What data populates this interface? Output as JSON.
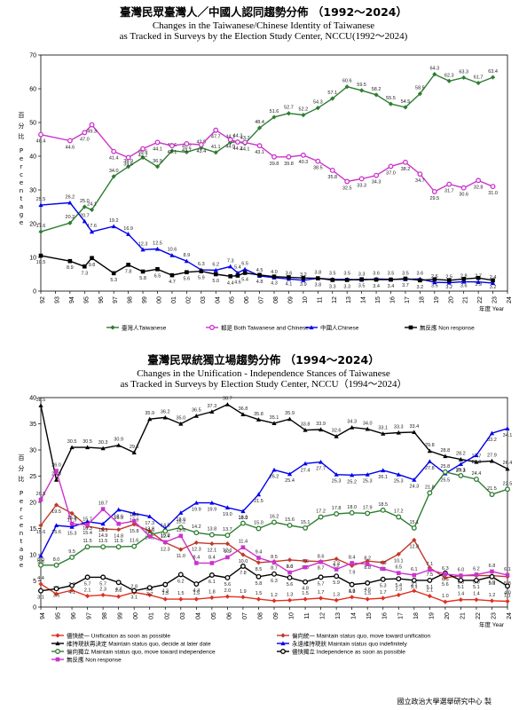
{
  "credit": "國立政治大學選舉研究中心 製",
  "chart_data": [
    {
      "type": "line",
      "title_cn": "臺灣民眾臺灣人／中國人認同趨勢分佈 （1992～2024）",
      "title_en_1": "Changes in the Taiwanese/Chinese Identity of Taiwanese",
      "title_en_2": "as Tracked in Surveys by the Election Study Center, NCCU(1992～2024)",
      "ylabel_cn": "百分比",
      "ylabel_en": "Percentage",
      "xlabel": "年度 Year",
      "ylim": [
        0,
        70
      ],
      "yticks": [
        0,
        10,
        20,
        30,
        40,
        50,
        60,
        70
      ],
      "categories": [
        "92",
        "93",
        "94",
        "95",
        "96",
        "97",
        "98",
        "99",
        "00",
        "01",
        "02",
        "03",
        "04",
        "05",
        "06",
        "07",
        "08",
        "09",
        "10",
        "11",
        "12",
        "13",
        "14",
        "15",
        "16",
        "17",
        "18",
        "19",
        "20",
        "21",
        "22",
        "23",
        "24"
      ],
      "x": [
        0,
        2,
        3,
        3.5,
        5,
        6,
        7,
        8,
        9,
        10,
        11,
        12,
        13,
        13.5,
        14,
        15,
        16,
        17,
        18,
        19,
        20,
        21,
        22,
        23,
        24,
        25,
        26,
        27,
        28,
        29,
        30,
        31,
        32
      ],
      "series": [
        {
          "name": "臺灣人Taiwanese",
          "color": "#2e7d32",
          "marker": "diamond",
          "values": [
            17.6,
            20.2,
            25.0,
            24.1,
            34.0,
            36.9,
            39.6,
            36.9,
            41.6,
            41.2,
            42.5,
            41.1,
            44.1,
            44.3,
            43.7,
            48.4,
            51.6,
            52.7,
            52.2,
            54.3,
            57.1,
            60.6,
            59.5,
            58.2,
            55.5,
            54.5,
            58.5,
            64.3,
            62.3,
            63.3,
            61.7,
            63.4,
            null
          ]
        },
        {
          "name": "都是 Both Taiwanese and Chinese",
          "color": "#cc33cc",
          "marker": "circle",
          "values": [
            46.4,
            44.6,
            47.0,
            49.3,
            41.4,
            39.6,
            42.2,
            44.1,
            43.1,
            43.7,
            43.4,
            47.7,
            44.9,
            44.2,
            44.1,
            43.1,
            39.8,
            39.8,
            40.3,
            38.5,
            35.8,
            32.5,
            33.3,
            34.3,
            37.0,
            38.2,
            34.7,
            29.5,
            31.7,
            30.6,
            32.8,
            31.0,
            null
          ]
        },
        {
          "name": "中國人Chinese",
          "color": "#0000ee",
          "marker": "triangle",
          "values": [
            25.5,
            26.2,
            20.7,
            17.6,
            19.2,
            16.9,
            12.3,
            12.5,
            10.6,
            8.9,
            6.3,
            6.2,
            7.3,
            5.4,
            6.5,
            4.5,
            4.0,
            3.6,
            3.2,
            3.8,
            3.5,
            3.5,
            3.3,
            3.6,
            3.5,
            3.5,
            3.6,
            2.6,
            2.5,
            2.8,
            2.7,
            2.4,
            null
          ]
        },
        {
          "name": "無反應 Non response",
          "color": "#000000",
          "marker": "square",
          "values": [
            10.5,
            8.9,
            7.3,
            9.8,
            5.3,
            7.8,
            5.8,
            6.5,
            4.7,
            5.6,
            5.9,
            5.0,
            4.4,
            4.6,
            5.4,
            4.8,
            4.3,
            4.1,
            3.9,
            3.8,
            3.3,
            3.3,
            3.5,
            3.4,
            3.4,
            3.7,
            3.2,
            3.5,
            3.2,
            3.6,
            3.9,
            3.2,
            null
          ]
        }
      ]
    },
    {
      "type": "line",
      "title_cn": "臺灣民眾統獨立場趨勢分佈 （1994～2024）",
      "title_en_1": "Changes in the Unification - Independence Stances of Taiwanese",
      "title_en_2": "as Tracked in Surveys by Election Study Center, NCCU（1994～2024）",
      "ylabel_cn": "百分比",
      "ylabel_en": "Percentage",
      "xlabel": "年度 Year",
      "ylim": [
        0,
        40
      ],
      "yticks": [
        0,
        5,
        10,
        15,
        20,
        25,
        30,
        35,
        40
      ],
      "categories": [
        "94",
        "95",
        "96",
        "97",
        "98",
        "99",
        "00",
        "01",
        "02",
        "03",
        "04",
        "05",
        "06",
        "07",
        "08",
        "09",
        "10",
        "11",
        "12",
        "13",
        "14",
        "15",
        "16",
        "17",
        "18",
        "19",
        "20",
        "21",
        "22",
        "23",
        "24"
      ],
      "x": [
        0,
        1,
        2,
        3,
        4,
        5,
        6,
        7,
        8,
        9,
        10,
        11,
        12,
        13,
        14,
        15,
        16,
        17,
        18,
        19,
        20,
        21,
        22,
        23,
        24,
        25,
        26,
        27,
        28,
        29,
        30
      ],
      "series": [
        {
          "name": "儘快統一 Unification as soon as possible",
          "color": "#e03020",
          "marker": "diamond",
          "values": [
            4.4,
            2.5,
            3.2,
            2.1,
            2.3,
            2.0,
            2.8,
            2.3,
            1.5,
            1.5,
            1.5,
            1.8,
            2.0,
            1.9,
            1.5,
            1.2,
            1.3,
            1.5,
            1.7,
            1.3,
            1.9,
            1.5,
            1.7,
            2.3,
            3.1,
            2.1,
            1.0,
            1.4,
            1.4,
            1.2,
            1.1
          ]
        },
        {
          "name": "偏向統一 Maintain status quo, move toward unification",
          "color": "#c0392b",
          "marker": "diamond",
          "values": [
            15.6,
            19.5,
            17.9,
            15.4,
            14.9,
            14.8,
            15.8,
            14.5,
            12.3,
            11.0,
            12.3,
            12.1,
            12.1,
            10.0,
            8.5,
            8.7,
            9.0,
            8.8,
            8.7,
            9.2,
            7.9,
            8.8,
            8.5,
            10.1,
            12.8,
            7.5,
            5.6,
            6.0,
            6.0,
            6.0,
            5.8
          ]
        },
        {
          "name": "維持現狀再決定 Maintain status quo, decide at later date",
          "color": "#000000",
          "marker": "triangle",
          "values": [
            38.5,
            24.3,
            30.5,
            30.5,
            30.3,
            30.9,
            29.5,
            35.9,
            36.2,
            35.0,
            36.5,
            37.3,
            38.7,
            36.8,
            35.8,
            35.1,
            35.9,
            33.8,
            33.9,
            32.6,
            34.3,
            34.0,
            33.1,
            33.3,
            33.4,
            29.8,
            28.8,
            28.2,
            27.7,
            27.9,
            26.4
          ]
        },
        {
          "name": "永遠維持現狀 Maintain status quo indefinitely",
          "color": "#0000ee",
          "marker": "triangle",
          "values": [
            9.8,
            15.6,
            15.3,
            16.3,
            15.9,
            18.6,
            17.9,
            17.3,
            15.0,
            18.0,
            19.9,
            19.9,
            19.0,
            18.3,
            21.5,
            26.2,
            25.4,
            27.4,
            27.7,
            25.3,
            25.2,
            25.3,
            26.1,
            25.3,
            24.3,
            27.8,
            25.5,
            27.3,
            29.0,
            33.2,
            34.1
          ]
        },
        {
          "name": "偏向獨立 Maintain status quo, move toward independence",
          "color": "#2e7d32",
          "marker": "circle",
          "values": [
            8.0,
            8.0,
            9.5,
            11.5,
            11.5,
            11.5,
            11.6,
            13.8,
            14.5,
            15.2,
            14.2,
            13.8,
            13.7,
            16.0,
            15.0,
            16.2,
            15.6,
            15.1,
            17.2,
            17.8,
            18.0,
            17.9,
            18.5,
            17.2,
            15.1,
            21.8,
            25.8,
            25.1,
            24.4,
            21.5,
            22.5
          ]
        },
        {
          "name": "儘快獨立 Independence as soon as possible",
          "color": "#000000",
          "marker": "circle",
          "values": [
            3.1,
            3.5,
            4.1,
            5.7,
            5.7,
            4.7,
            3.1,
            3.7,
            4.3,
            6.2,
            4.4,
            6.1,
            5.6,
            7.8,
            5.8,
            6.3,
            5.6,
            4.8,
            5.7,
            5.9,
            4.3,
            4.6,
            5.3,
            5.4,
            5.1,
            5.1,
            6.5,
            5.1,
            5.1,
            5.8,
            4.0
          ]
        },
        {
          "name": "無反應 Non response",
          "color": "#cc33cc",
          "marker": "square",
          "values": [
            20.5,
            26.0,
            15.9,
            15.7,
            18.7,
            15.9,
            16.4,
            13.5,
            12.4,
            13.6,
            8.4,
            8.4,
            9.5,
            11.4,
            9.4,
            8.5,
            6.6,
            7.6,
            8.6,
            7.2,
            8.4,
            8.2,
            7.3,
            6.5,
            6.1,
            7.1,
            6.3,
            6.0,
            6.2,
            6.8,
            6.1
          ]
        }
      ]
    }
  ]
}
